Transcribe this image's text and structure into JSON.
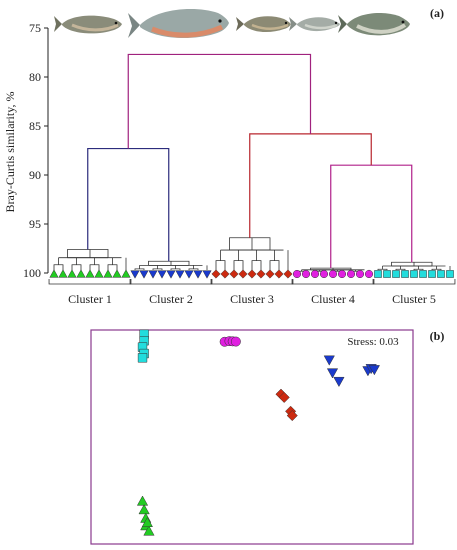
{
  "panel_a": {
    "label": "(a)"
  },
  "panel_b": {
    "label": "(b)",
    "stress_text": "Stress: 0.03"
  },
  "colors": {
    "cluster_1": "#22cc22",
    "cluster_2": "#1a3acc",
    "cluster_3": "#cc2a10",
    "cluster_4": "#e020e0",
    "cluster_5": "#22dddd",
    "branch_top": "#a0227e",
    "branch_left": "#2c2c7c",
    "branch_mid": "#b8262e",
    "branch_right": "#b0208a",
    "nmds_frame": "#8a3a8e",
    "fish_silver": "#9aa0a0",
    "fish_salmon": "#d98b6a"
  },
  "fish_images": [
    "fish-icon",
    "salmon-icon",
    "fish-icon",
    "fish-icon",
    "fish-icon"
  ],
  "chart_data": [
    {
      "type": "dendrogram",
      "ylabel": "Bray-Curtis similarity, %",
      "ylim": [
        75,
        100
      ],
      "yticks": [
        75,
        80,
        85,
        90,
        95,
        100
      ],
      "y_inverted": true,
      "clusters": [
        {
          "name": "Cluster 1",
          "marker": "triangle-up",
          "color": "#22cc22",
          "n_leaves": 9,
          "internal_merge": 97.6
        },
        {
          "name": "Cluster 2",
          "marker": "triangle-down",
          "color": "#1a3acc",
          "n_leaves": 9,
          "internal_merge": 98.8
        },
        {
          "name": "Cluster 3",
          "marker": "diamond",
          "color": "#cc2a10",
          "n_leaves": 9,
          "internal_merge": 96.4
        },
        {
          "name": "Cluster 4",
          "marker": "circle",
          "color": "#e020e0",
          "n_leaves": 9,
          "internal_merge": 99.5
        },
        {
          "name": "Cluster 5",
          "marker": "square",
          "color": "#22dddd",
          "n_leaves": 9,
          "internal_merge": 98.9
        }
      ],
      "merges": [
        {
          "join": [
            "Cluster 1",
            "Cluster 2"
          ],
          "similarity": 87.3
        },
        {
          "join": [
            "Cluster 4",
            "Cluster 5"
          ],
          "similarity": 89.0
        },
        {
          "join": [
            "Cluster 3",
            "Cluster 4+5"
          ],
          "similarity": 85.8
        },
        {
          "join": [
            "Cluster 1+2",
            "Cluster 3+4+5"
          ],
          "similarity": 77.7
        }
      ]
    },
    {
      "type": "scatter",
      "subtype": "nMDS ordination",
      "title": "",
      "xlabel": "",
      "ylabel": "",
      "grid": false,
      "stress": 0.03,
      "xlim": [
        0,
        1
      ],
      "ylim": [
        0,
        1
      ],
      "series": [
        {
          "name": "Cluster 1",
          "marker": "triangle-up",
          "color": "#22cc22",
          "points": [
            [
              0.16,
              0.2
            ],
            [
              0.165,
              0.16
            ],
            [
              0.17,
              0.12
            ],
            [
              0.17,
              0.085
            ],
            [
              0.18,
              0.06
            ],
            [
              0.175,
              0.1
            ]
          ]
        },
        {
          "name": "Cluster 2",
          "marker": "triangle-down",
          "color": "#1a3acc",
          "points": [
            [
              0.74,
              0.86
            ],
            [
              0.75,
              0.8
            ],
            [
              0.77,
              0.76
            ],
            [
              0.86,
              0.81
            ],
            [
              0.87,
              0.82
            ],
            [
              0.88,
              0.815
            ]
          ]
        },
        {
          "name": "Cluster 3",
          "marker": "diamond",
          "color": "#cc2a10",
          "points": [
            [
              0.59,
              0.7
            ],
            [
              0.6,
              0.685
            ],
            [
              0.62,
              0.62
            ],
            [
              0.625,
              0.6
            ]
          ]
        },
        {
          "name": "Cluster 4",
          "marker": "circle",
          "color": "#e020e0",
          "points": [
            [
              0.415,
              0.945
            ],
            [
              0.43,
              0.948
            ],
            [
              0.44,
              0.947
            ],
            [
              0.45,
              0.946
            ]
          ]
        },
        {
          "name": "Cluster 5",
          "marker": "square",
          "color": "#22dddd",
          "points": [
            [
              0.165,
              0.98
            ],
            [
              0.165,
              0.95
            ],
            [
              0.16,
              0.92
            ],
            [
              0.165,
              0.89
            ],
            [
              0.16,
              0.87
            ]
          ]
        }
      ]
    }
  ]
}
